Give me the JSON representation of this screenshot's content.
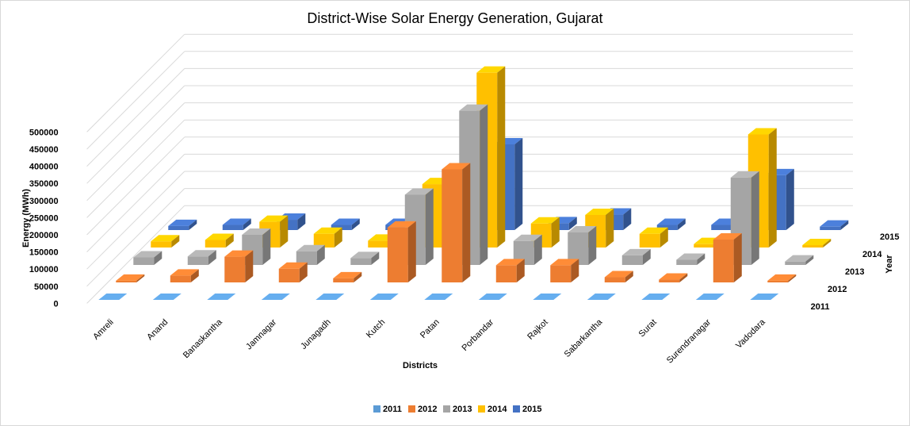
{
  "chart_data": {
    "type": "bar",
    "title": "District-Wise Solar Energy Generation, Gujarat",
    "xlabel": "Districts",
    "ylabel": "Energy (MWh)",
    "zlabel": "Year",
    "ylim": [
      0,
      500000
    ],
    "yticks": [
      "0",
      "50000",
      "100000",
      "150000",
      "200000",
      "250000",
      "300000",
      "350000",
      "400000",
      "450000",
      "500000"
    ],
    "categories": [
      "Amreli",
      "Anand",
      "Banaskantha",
      "Jamnagar",
      "Junagadh",
      "Kutch",
      "Patan",
      "Porbandar",
      "Rajkot",
      "Sabarkantha",
      "Surat",
      "Surendranagar",
      "Vadodara"
    ],
    "legend_position": "bottom",
    "series": [
      {
        "name": "2011",
        "color": "#5b9bd5",
        "values": [
          0,
          0,
          0,
          0,
          0,
          0,
          0,
          0,
          0,
          0,
          0,
          0,
          0
        ]
      },
      {
        "name": "2012",
        "color": "#ed7d31",
        "values": [
          5000,
          20000,
          75000,
          40000,
          12000,
          160000,
          330000,
          50000,
          50000,
          15000,
          8000,
          125000,
          5000
        ]
      },
      {
        "name": "2013",
        "color": "#a5a5a5",
        "values": [
          22000,
          25000,
          88000,
          40000,
          20000,
          205000,
          450000,
          70000,
          95000,
          28000,
          15000,
          255000,
          10000
        ]
      },
      {
        "name": "2014",
        "color": "#ffc000",
        "values": [
          18000,
          22000,
          75000,
          40000,
          20000,
          185000,
          510000,
          70000,
          95000,
          40000,
          10000,
          330000,
          7000
        ]
      },
      {
        "name": "2015",
        "color": "#4472c4",
        "values": [
          12000,
          15000,
          30000,
          15000,
          15000,
          35000,
          250000,
          20000,
          45000,
          15000,
          15000,
          160000,
          10000
        ]
      }
    ]
  }
}
